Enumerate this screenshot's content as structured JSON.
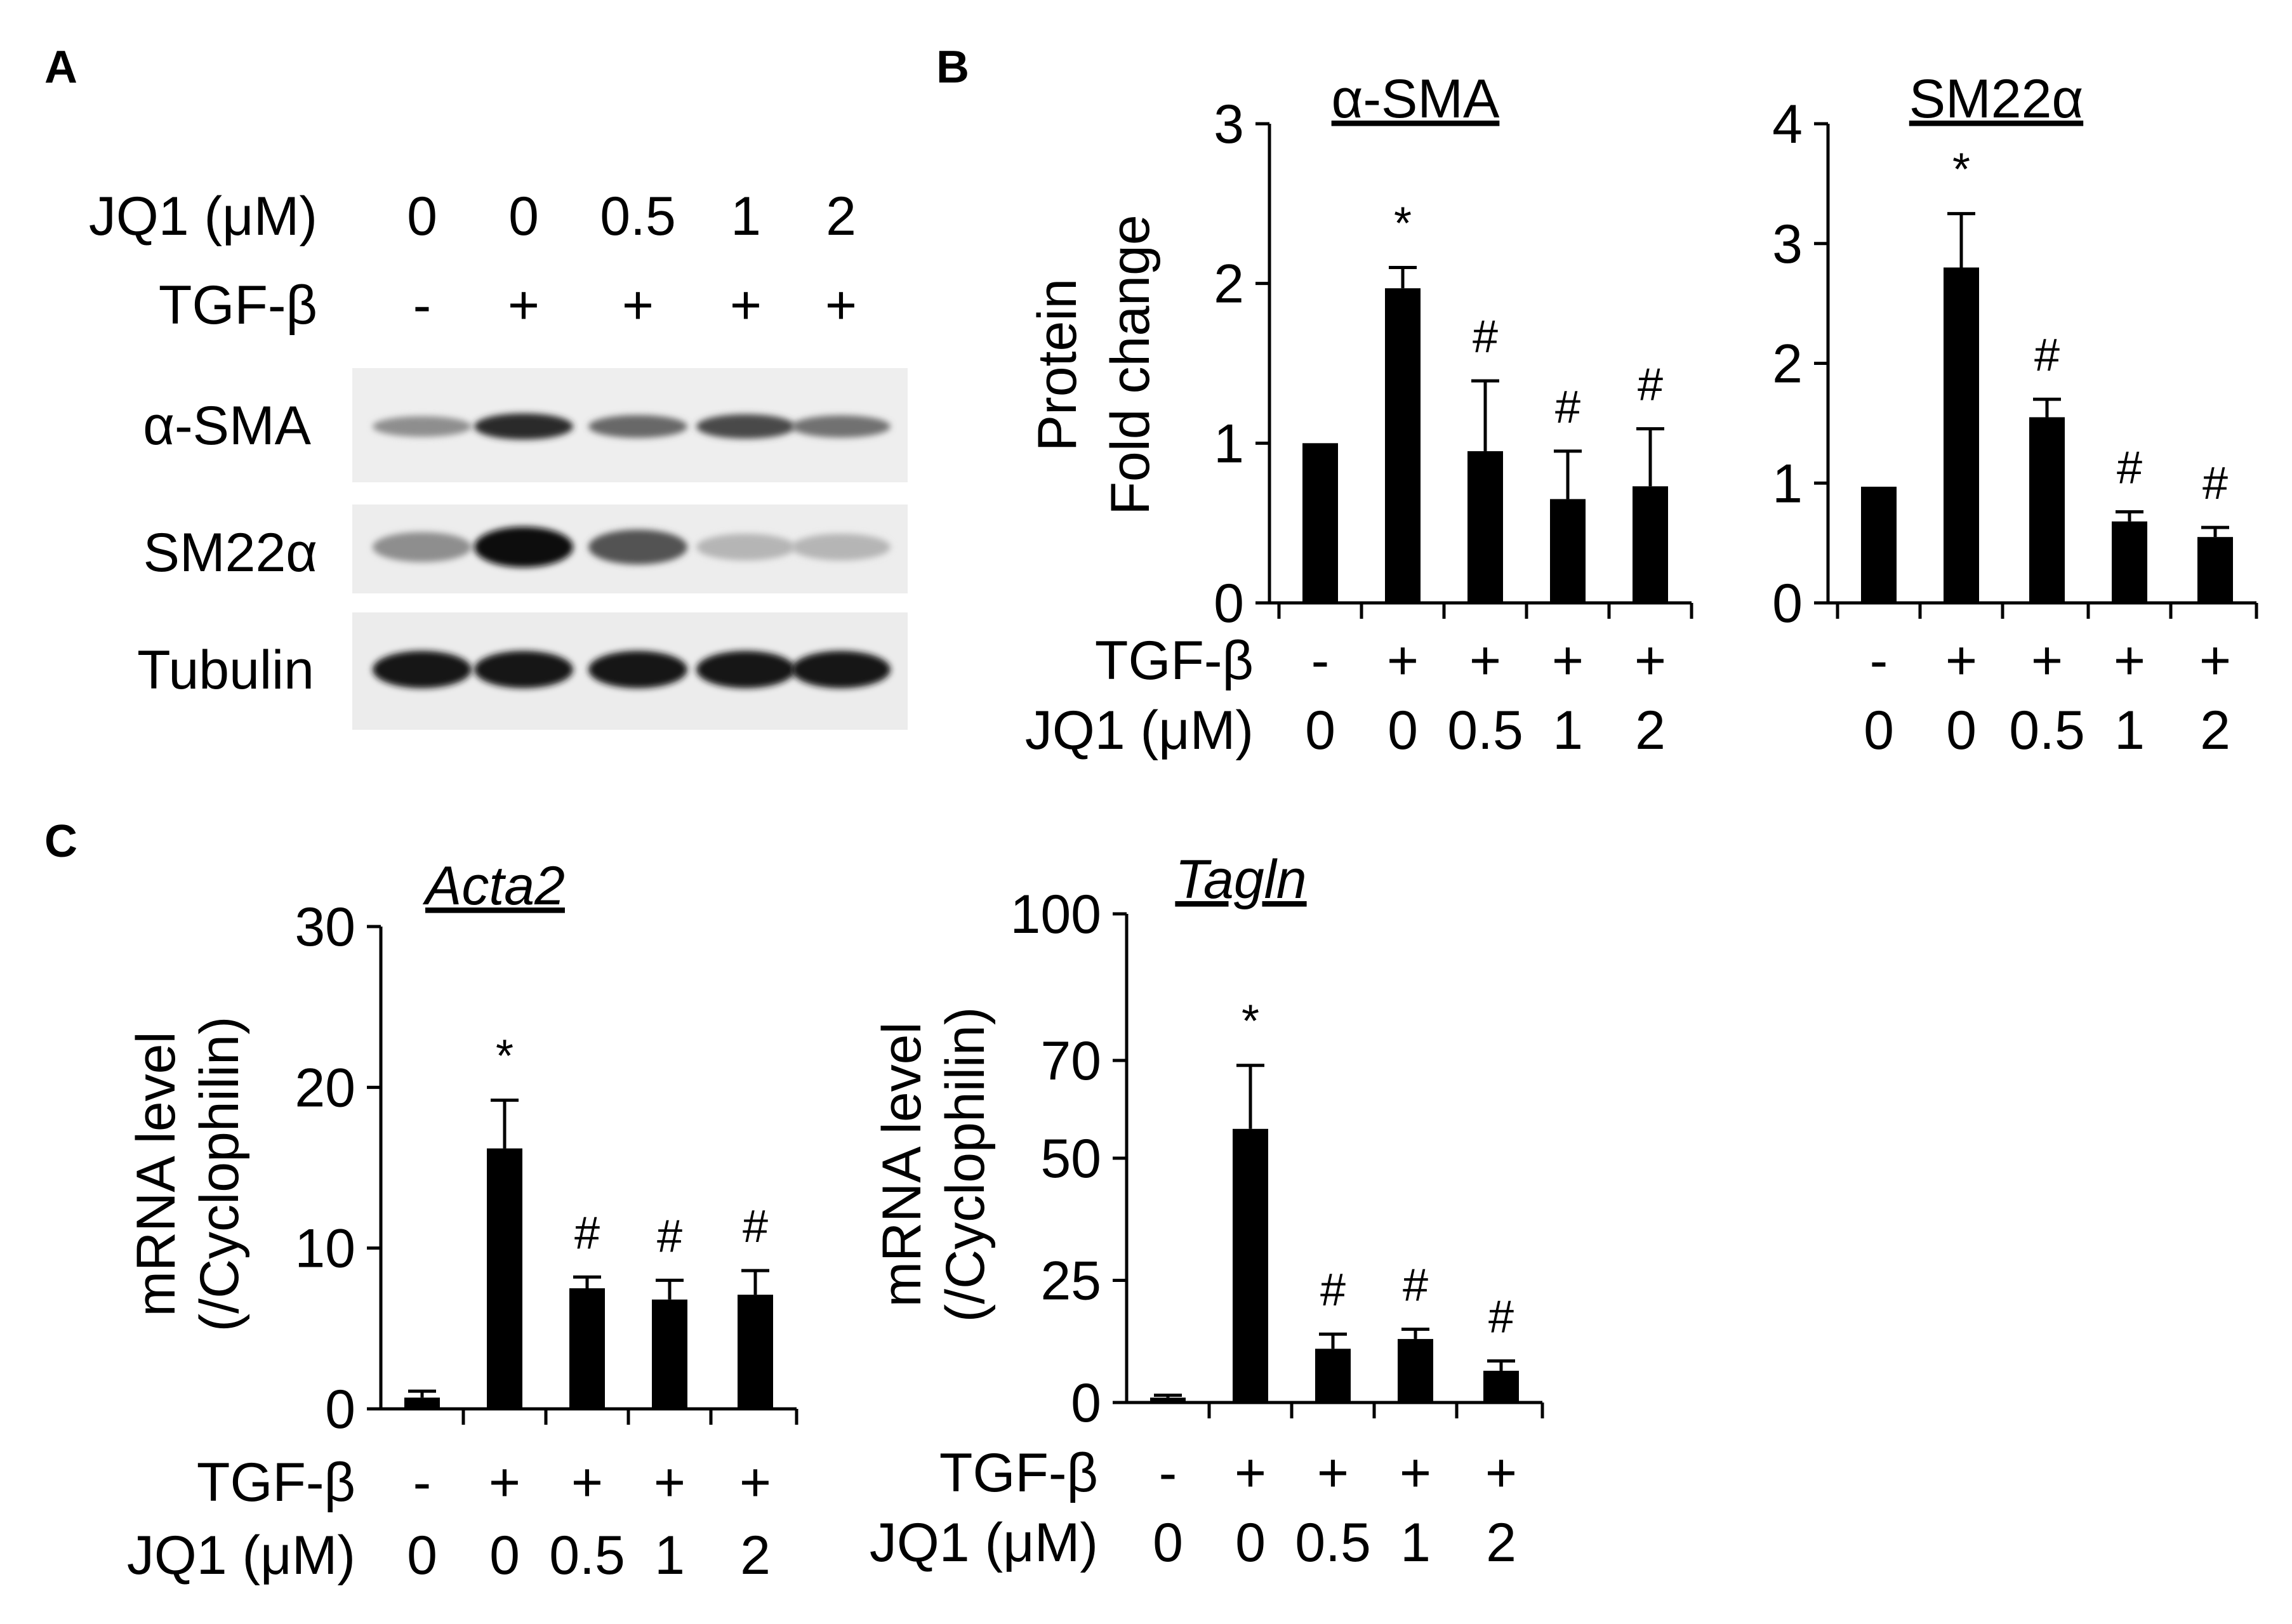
{
  "panels": {
    "a": "A",
    "b": "B",
    "c": "C"
  },
  "blot": {
    "jq1_label": "JQ1 (μM)",
    "tgf_label": "TGF-β",
    "jq1_values": [
      "0",
      "0",
      "0.5",
      "1",
      "2"
    ],
    "tgf_values": [
      "-",
      "+",
      "+",
      "+",
      "+"
    ],
    "rows": [
      {
        "label": "α-SMA",
        "intensity": [
          0.35,
          0.85,
          0.55,
          0.7,
          0.5
        ]
      },
      {
        "label": "SM22α",
        "intensity": [
          0.35,
          1.0,
          0.65,
          0.15,
          0.15
        ]
      },
      {
        "label": "Tubulin",
        "intensity": [
          0.95,
          0.95,
          0.95,
          0.95,
          0.95
        ]
      }
    ]
  },
  "chart_data": [
    {
      "type": "bar",
      "title": "α-SMA",
      "ylabel_lines": [
        "Protein",
        "Fold change"
      ],
      "ylim": [
        0,
        3
      ],
      "yticks": [
        "0",
        "1",
        "2",
        "3"
      ],
      "row_labels": [
        "TGF-β",
        "JQ1 (μM)"
      ],
      "tgf": [
        "-",
        "+",
        "+",
        "+",
        "+"
      ],
      "categories": [
        "0",
        "0",
        "0.5",
        "1",
        "2"
      ],
      "values": [
        1.0,
        1.97,
        0.95,
        0.65,
        0.73
      ],
      "errors": [
        0,
        0.13,
        0.44,
        0.3,
        0.36
      ],
      "marks": [
        "",
        "*",
        "#",
        "#",
        "#"
      ]
    },
    {
      "type": "bar",
      "title": "SM22α",
      "ylabel_lines": [],
      "ylim": [
        0,
        4
      ],
      "yticks": [
        "0",
        "1",
        "2",
        "3",
        "4"
      ],
      "row_labels": [],
      "tgf": [
        "-",
        "+",
        "+",
        "+",
        "+"
      ],
      "categories": [
        "0",
        "0",
        "0.5",
        "1",
        "2"
      ],
      "values": [
        0.97,
        2.8,
        1.55,
        0.68,
        0.55
      ],
      "errors": [
        0,
        0.45,
        0.15,
        0.08,
        0.08
      ],
      "marks": [
        "",
        "*",
        "#",
        "#",
        "#"
      ]
    },
    {
      "type": "bar",
      "title": "Acta2",
      "ylabel_lines": [
        "mRNA level",
        "(/Cyclophilin)"
      ],
      "ylim": [
        0,
        30
      ],
      "yticks": [
        "0",
        "10",
        "20",
        "30"
      ],
      "row_labels": [
        "TGF-β",
        "JQ1 (μM)"
      ],
      "tgf": [
        "-",
        "+",
        "+",
        "+",
        "+"
      ],
      "categories": [
        "0",
        "0",
        "0.5",
        "1",
        "2"
      ],
      "values": [
        0.7,
        16.2,
        7.5,
        6.8,
        7.1
      ],
      "errors": [
        0.4,
        3.0,
        0.7,
        1.2,
        1.5
      ],
      "marks": [
        "",
        "*",
        "#",
        "#",
        "#"
      ]
    },
    {
      "type": "bar",
      "title": "Tagln",
      "ylabel_lines": [
        "mRNA level",
        "(/Cyclophilin)"
      ],
      "ylim": [
        0,
        100
      ],
      "yticks": [
        "0",
        "25",
        "50",
        "70",
        "100"
      ],
      "ytick_values": [
        0,
        25,
        50,
        70,
        100
      ],
      "row_labels": [
        "TGF-β",
        "JQ1 (μM)"
      ],
      "tgf": [
        "-",
        "+",
        "+",
        "+",
        "+"
      ],
      "categories": [
        "0",
        "0",
        "0.5",
        "1",
        "2"
      ],
      "values": [
        1.0,
        56.0,
        11.0,
        13.0,
        6.5
      ],
      "errors": [
        0.5,
        13.0,
        3.0,
        2.0,
        2.0
      ],
      "marks": [
        "",
        "*",
        "#",
        "#",
        "#"
      ]
    }
  ]
}
